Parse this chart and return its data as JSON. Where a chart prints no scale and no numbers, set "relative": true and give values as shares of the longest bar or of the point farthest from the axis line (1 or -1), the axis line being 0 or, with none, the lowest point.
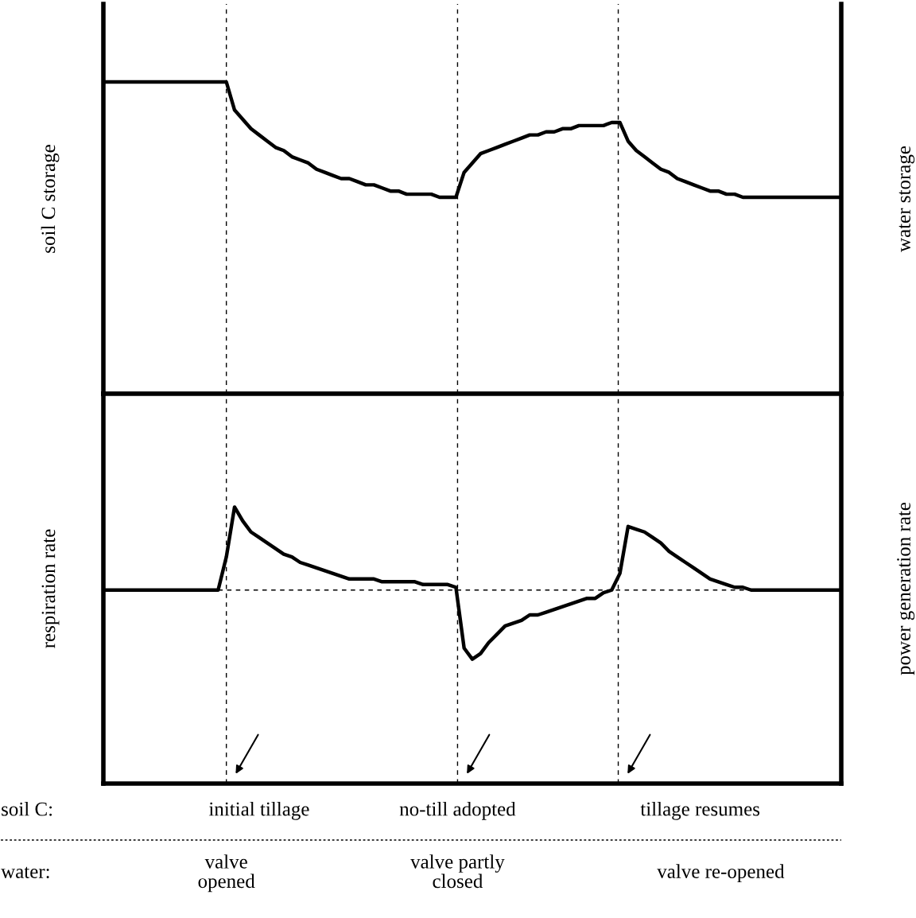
{
  "chart_data": [
    {
      "type": "line",
      "relative": true,
      "ylabel": "soil C storage",
      "y2label": "water storage",
      "line_style": "solid",
      "marker": "none",
      "categories": [
        null,
        null,
        null,
        null,
        null,
        null,
        null,
        null,
        null,
        null,
        null,
        null,
        null,
        null,
        null,
        null,
        null,
        null,
        null,
        null,
        null,
        null,
        null,
        null,
        null,
        null,
        null,
        null,
        null,
        null,
        null,
        null,
        null,
        null,
        null,
        null,
        null,
        null,
        null,
        null,
        null,
        null,
        null,
        null,
        null,
        null,
        null,
        null,
        null,
        null,
        null,
        null,
        null,
        null,
        null,
        null,
        null,
        null,
        null,
        null,
        null,
        null,
        null,
        null,
        null,
        null,
        null,
        null,
        null,
        null,
        null,
        null,
        null,
        null,
        null,
        null,
        null,
        null,
        null,
        null,
        null,
        null,
        null,
        null,
        null,
        null,
        null,
        null,
        null,
        null,
        null
      ],
      "series": [
        {
          "color": "#000000",
          "values": [
            1,
            1,
            1,
            1,
            1,
            1,
            1,
            1,
            1,
            1,
            1,
            1,
            1,
            1,
            1,
            1,
            0.91,
            0.88,
            0.85,
            0.83,
            0.81,
            0.79,
            0.78,
            0.76,
            0.75,
            0.74,
            0.72,
            0.71,
            0.7,
            0.69,
            0.69,
            0.68,
            0.67,
            0.67,
            0.66,
            0.65,
            0.65,
            0.64,
            0.64,
            0.64,
            0.64,
            0.63,
            0.63,
            0.63,
            0.71,
            0.74,
            0.77,
            0.78,
            0.79,
            0.8,
            0.81,
            0.82,
            0.83,
            0.83,
            0.84,
            0.84,
            0.85,
            0.85,
            0.86,
            0.86,
            0.86,
            0.86,
            0.87,
            0.87,
            0.81,
            0.78,
            0.76,
            0.74,
            0.72,
            0.71,
            0.69,
            0.68,
            0.67,
            0.66,
            0.65,
            0.65,
            0.64,
            0.64,
            0.63,
            0.63,
            0.63,
            0.63,
            0.63,
            0.63,
            0.63,
            0.63,
            0.63,
            0.63,
            0.63,
            0.63,
            0.63
          ]
        }
      ]
    },
    {
      "type": "line",
      "relative": true,
      "ylabel": "respiration rate",
      "y2label": "power generation rate",
      "line_style": "solid",
      "marker": "none",
      "categories": [
        null,
        null,
        null,
        null,
        null,
        null,
        null,
        null,
        null,
        null,
        null,
        null,
        null,
        null,
        null,
        null,
        null,
        null,
        null,
        null,
        null,
        null,
        null,
        null,
        null,
        null,
        null,
        null,
        null,
        null,
        null,
        null,
        null,
        null,
        null,
        null,
        null,
        null,
        null,
        null,
        null,
        null,
        null,
        null,
        null,
        null,
        null,
        null,
        null,
        null,
        null,
        null,
        null,
        null,
        null,
        null,
        null,
        null,
        null,
        null,
        null,
        null,
        null,
        null,
        null,
        null,
        null,
        null,
        null,
        null,
        null,
        null,
        null,
        null,
        null,
        null,
        null,
        null,
        null,
        null,
        null,
        null,
        null,
        null,
        null,
        null,
        null,
        null,
        null,
        null,
        null
      ],
      "series": [
        {
          "color": "#000000",
          "values": [
            0.7,
            0.7,
            0.7,
            0.7,
            0.7,
            0.7,
            0.7,
            0.7,
            0.7,
            0.7,
            0.7,
            0.7,
            0.7,
            0.7,
            0.7,
            0.82,
            1,
            0.95,
            0.91,
            0.89,
            0.87,
            0.85,
            0.83,
            0.82,
            0.8,
            0.79,
            0.78,
            0.77,
            0.76,
            0.75,
            0.74,
            0.74,
            0.74,
            0.74,
            0.73,
            0.73,
            0.73,
            0.73,
            0.73,
            0.72,
            0.72,
            0.72,
            0.72,
            0.71,
            0.49,
            0.45,
            0.47,
            0.51,
            0.54,
            0.57,
            0.58,
            0.59,
            0.61,
            0.61,
            0.62,
            0.63,
            0.64,
            0.65,
            0.66,
            0.67,
            0.67,
            0.69,
            0.7,
            0.76,
            0.93,
            0.92,
            0.91,
            0.89,
            0.87,
            0.84,
            0.82,
            0.8,
            0.78,
            0.76,
            0.74,
            0.73,
            0.72,
            0.71,
            0.71,
            0.7,
            0.7,
            0.7,
            0.7,
            0.7,
            0.7,
            0.7,
            0.7,
            0.7,
            0.7,
            0.7,
            0.7
          ]
        }
      ],
      "annotations": [
        "soil C:",
        "initial tillage",
        "no-till adopted",
        "tillage resumes",
        "water:",
        "valve\nopened",
        "valve partly\nclosed",
        "valve re-opened"
      ]
    }
  ]
}
